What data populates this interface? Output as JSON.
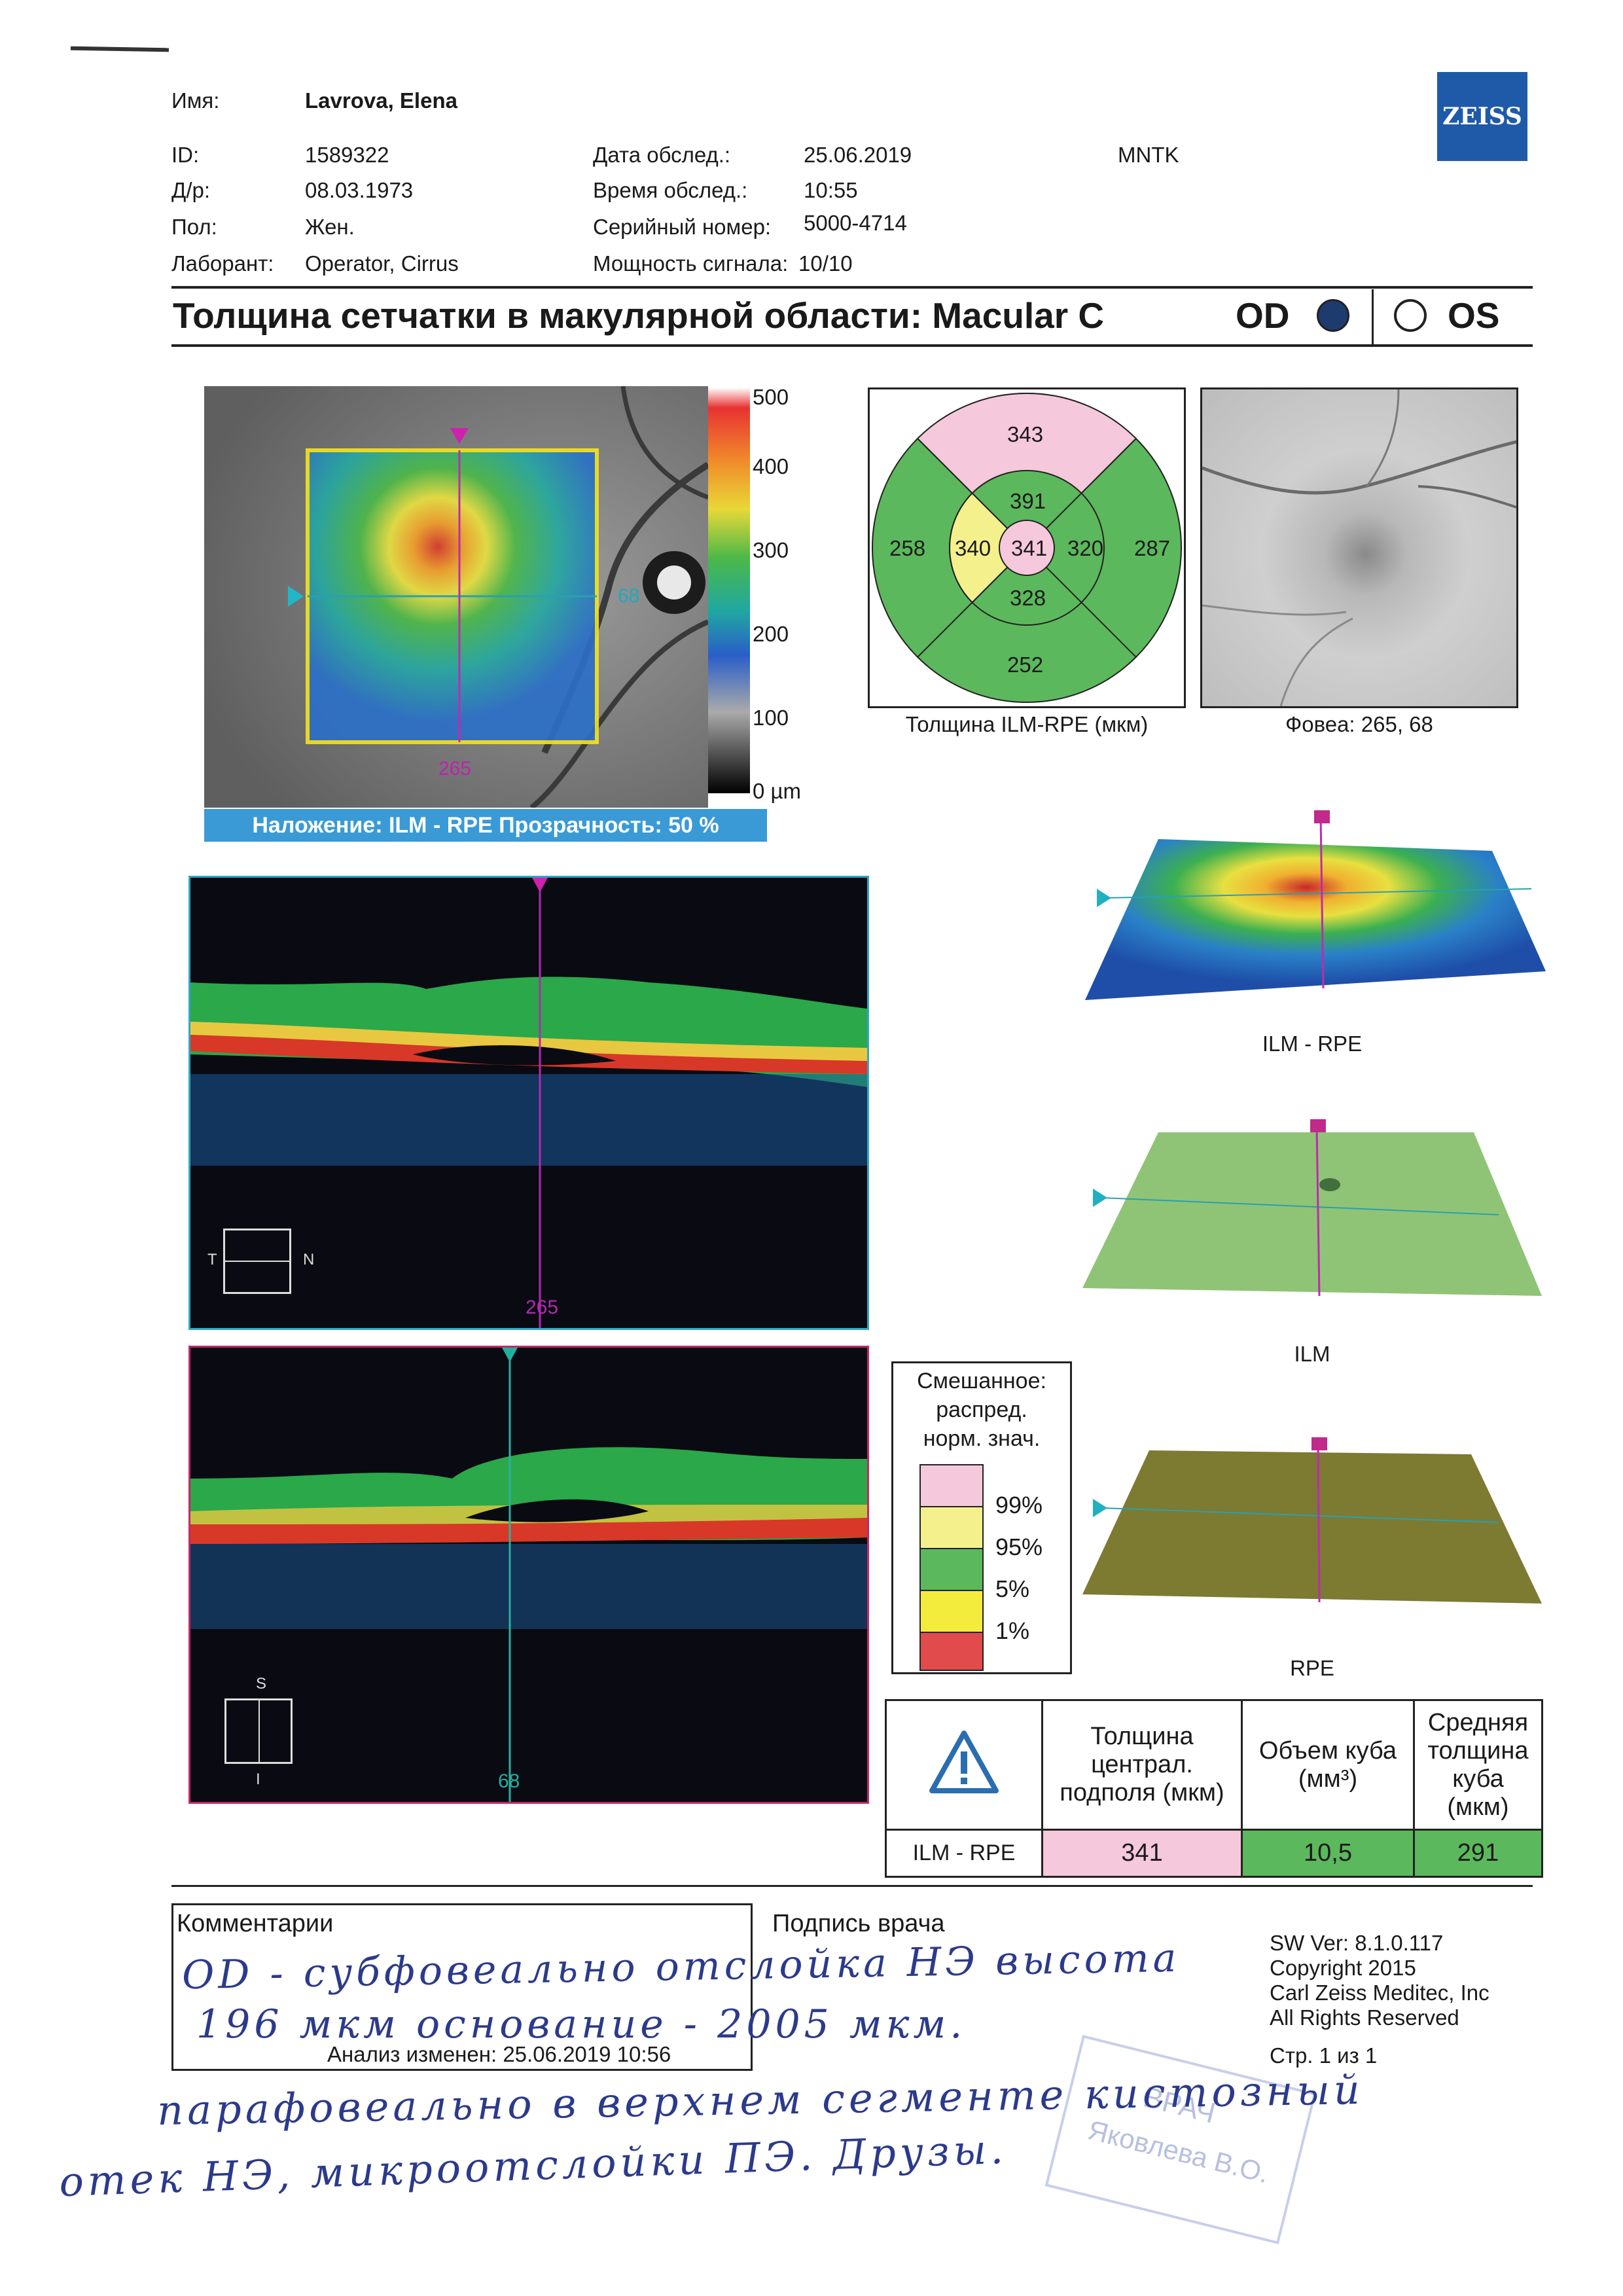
{
  "header": {
    "name_label": "Имя:",
    "name_value": "Lavrova, Elena",
    "id_label": "ID:",
    "id_value": "1589322",
    "dob_label": "Д/р:",
    "dob_value": "08.03.1973",
    "sex_label": "Пол:",
    "sex_value": "Жен.",
    "tech_label": "Лаборант:",
    "tech_value": "Operator, Cirrus",
    "exam_date_label": "Дата обслед.:",
    "exam_date_value": "25.06.2019",
    "exam_time_label": "Время обслед.:",
    "exam_time_value": "10:55",
    "serial_label": "Серийный номер:",
    "serial_value": "5000-4714",
    "signal_label": "Мощность сигнала:",
    "signal_value": "10/10",
    "clinic": "MNTK",
    "logo": "ZEISS"
  },
  "title": {
    "text": "Толщина сетчатки в макулярной области: Macular C",
    "od": "OD",
    "os": "OS",
    "selected_eye": "OD"
  },
  "thickness_map": {
    "scale_labels": [
      "500",
      "400",
      "300",
      "200",
      "100",
      "0 µm"
    ],
    "h_marker": "68",
    "v_marker": "265",
    "overlay_caption": "Наложение: ILM - RPE  Прозрачность: 50 %"
  },
  "etdrs": {
    "center": "341",
    "inner_superior": "391",
    "inner_nasal": "320",
    "inner_inferior": "328",
    "inner_temporal": "340",
    "outer_superior": "343",
    "outer_nasal": "287",
    "outer_inferior": "252",
    "outer_temporal": "258",
    "caption": "Толщина ILM-RPE (мкм)",
    "colors": {
      "pink": "#f6c8dc",
      "yellow": "#f4f08c",
      "green": "#5cb85c"
    }
  },
  "fundus": {
    "caption": "Фовеа: 265, 68"
  },
  "bscan1": {
    "marker": "265",
    "axis_left": "T",
    "axis_right": "N"
  },
  "bscan2": {
    "marker": "68",
    "axis_top": "S",
    "axis_bottom": "I"
  },
  "surfaces": [
    {
      "label": "ILM - RPE"
    },
    {
      "label": "ILM"
    },
    {
      "label": "RPE"
    }
  ],
  "legend": {
    "title": [
      "Смешанное:",
      "распред.",
      "норм. знач."
    ],
    "items": [
      {
        "label": "99%",
        "color": "#f6c8dc"
      },
      {
        "label": "95%",
        "color": "#f4f08c"
      },
      {
        "label": "5%",
        "color": "#5cb85c"
      },
      {
        "label": "1%",
        "color": "#f4ec3c"
      },
      {
        "label": "",
        "color": "#e24b4b"
      }
    ]
  },
  "results": {
    "col1": "Толщина централ. подполя (мкм)",
    "col2": "Объем куба (мм³)",
    "col3": "Средняя толщина куба (мкм)",
    "row_label": "ILM - RPE",
    "v1": "341",
    "v2": "10,5",
    "v3": "291"
  },
  "footer": {
    "comments_label": "Комментарии",
    "signature_label": "Подпись врача",
    "analysis_changed": "Анализ изменен:  25.06.2019 10:56",
    "sw_ver": "SW Ver: 8.1.0.117",
    "copyright": "Copyright 2015",
    "company": "Carl Zeiss Meditec, Inc",
    "rights": "All Rights Reserved",
    "page": "Стр. 1 из 1"
  },
  "handwriting": {
    "line1": "OD - субфовеально отслойка НЭ высота",
    "line2": "196 мкм основание - 2005 мкм.",
    "line3": "парафовеально в верхнем сегменте кистозный",
    "line4": "отек НЭ, микроотслойки ПЭ. Друзы."
  },
  "stamp": {
    "line1": "ВРАЧ",
    "line2": "Яковлева В.О."
  }
}
